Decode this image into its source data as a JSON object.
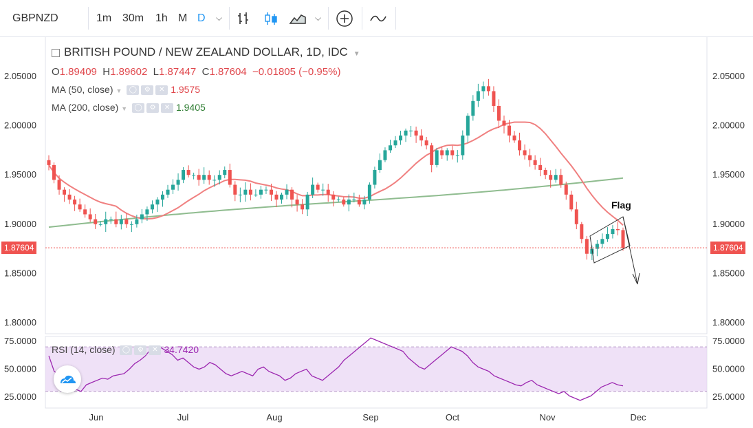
{
  "toolbar": {
    "symbol": "GBPNZD",
    "resolutions": [
      "1m",
      "30m",
      "1h",
      "M",
      "D"
    ],
    "active_resolution": "D"
  },
  "legend": {
    "title": "BRITISH POUND / NEW ZEALAND DOLLAR, 1D, IDC",
    "open_label": "O",
    "open": "1.89409",
    "high_label": "H",
    "high": "1.89602",
    "low_label": "L",
    "low": "1.87447",
    "close_label": "C",
    "close": "1.87604",
    "change": "−0.01805 (−0.95%)",
    "ma50_label": "MA (50, close)",
    "ma50_value": "1.9575",
    "ma200_label": "MA (200, close)",
    "ma200_value": "1.9405",
    "rsi_label": "RSI (14, close)",
    "rsi_value": "34.7420"
  },
  "annotation": {
    "flag_label": "Flag"
  },
  "last_price_tag": "1.87604",
  "colors": {
    "up": "#26a69a",
    "down": "#ef5350",
    "ma50": "#f08080",
    "ma200": "#8fbc8f",
    "rsi_line": "#9c27b0",
    "rsi_band": "#e8d4f4",
    "accent": "#2196f3"
  },
  "chart_data": {
    "type": "candlestick",
    "instrument": "GBPNZD",
    "timeframe": "1D",
    "ylim": [
      1.78,
      2.08
    ],
    "y_ticks": [
      "2.05000",
      "2.00000",
      "1.95000",
      "1.90000",
      "1.85000",
      "1.80000"
    ],
    "x_ticks": [
      "Jun",
      "Jul",
      "Aug",
      "Sep",
      "Oct",
      "Nov",
      "Dec"
    ],
    "close_path": [
      1.96,
      1.945,
      1.935,
      1.93,
      1.925,
      1.92,
      1.915,
      1.91,
      1.905,
      1.9,
      1.9,
      1.905,
      1.905,
      1.9,
      1.905,
      1.9,
      1.9,
      1.905,
      1.91,
      1.915,
      1.92,
      1.925,
      1.93,
      1.935,
      1.94,
      1.945,
      1.955,
      1.95,
      1.95,
      1.945,
      1.95,
      1.945,
      1.945,
      1.95,
      1.955,
      1.94,
      1.93,
      1.93,
      1.935,
      1.93,
      1.93,
      1.935,
      1.935,
      1.93,
      1.925,
      1.93,
      1.935,
      1.925,
      1.92,
      1.915,
      1.93,
      1.94,
      1.935,
      1.935,
      1.93,
      1.925,
      1.925,
      1.92,
      1.925,
      1.925,
      1.92,
      1.925,
      1.94,
      1.955,
      1.965,
      1.975,
      1.98,
      1.985,
      1.99,
      1.995,
      1.995,
      1.99,
      1.985,
      1.98,
      1.96,
      1.975,
      1.97,
      1.975,
      1.97,
      1.97,
      1.99,
      2.01,
      2.025,
      2.035,
      2.04,
      2.035,
      2.02,
      2.005,
      2.0,
      1.99,
      1.985,
      1.975,
      1.97,
      1.965,
      1.96,
      1.955,
      1.95,
      1.945,
      1.95,
      1.94,
      1.93,
      1.915,
      1.9,
      1.885,
      1.87,
      1.875,
      1.88,
      1.885,
      1.89,
      1.895,
      1.894,
      1.876
    ],
    "ma50": {
      "name": "MA (50, close)",
      "last": 1.9575
    },
    "ma200": {
      "name": "MA (200, close)",
      "last": 1.9405
    },
    "rsi": {
      "name": "RSI (14, close)",
      "last": 34.742,
      "ylim": [
        15,
        80
      ],
      "y_ticks": [
        "75.0000",
        "50.0000",
        "25.0000"
      ],
      "values": [
        62,
        48,
        45,
        40,
        38,
        32,
        30,
        36,
        38,
        40,
        42,
        41,
        44,
        45,
        46,
        50,
        55,
        58,
        62,
        68,
        70,
        69,
        66,
        63,
        58,
        60,
        56,
        52,
        50,
        52,
        56,
        54,
        50,
        46,
        44,
        46,
        48,
        46,
        44,
        50,
        52,
        48,
        46,
        44,
        40,
        42,
        46,
        48,
        50,
        44,
        42,
        40,
        44,
        48,
        52,
        58,
        62,
        66,
        70,
        74,
        78,
        76,
        74,
        72,
        70,
        68,
        66,
        60,
        56,
        52,
        50,
        54,
        58,
        62,
        66,
        70,
        68,
        66,
        62,
        56,
        52,
        50,
        48,
        44,
        42,
        40,
        38,
        36,
        35,
        38,
        40,
        36,
        34,
        32,
        30,
        28,
        30,
        26,
        24,
        22,
        24,
        26,
        30,
        34,
        36,
        38,
        36,
        35
      ]
    },
    "flag": {
      "label": "Flag"
    }
  }
}
